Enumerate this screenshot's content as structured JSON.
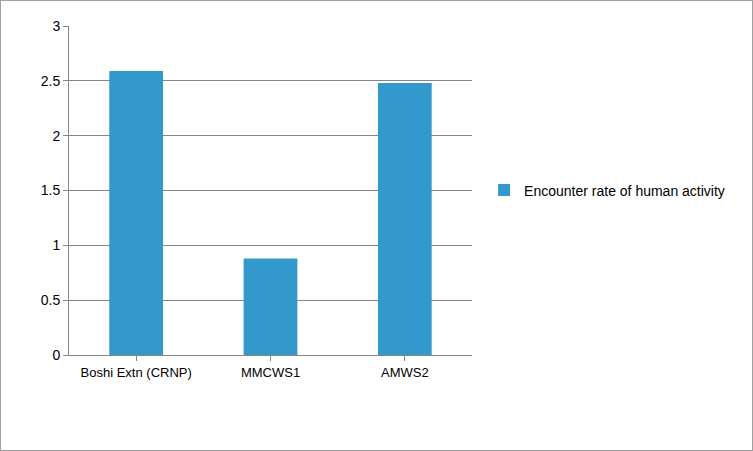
{
  "chart_data": {
    "type": "bar",
    "categories": [
      "Boshi Extn (CRNP)",
      "MMCWS1",
      "AMWS2"
    ],
    "series": [
      {
        "name": "Encounter rate of human activity",
        "color": "#3399cc",
        "values": [
          2.59,
          0.88,
          2.48
        ]
      }
    ],
    "ylim": [
      0,
      3
    ],
    "yticks": [
      0,
      0.5,
      1,
      1.5,
      2,
      2.5,
      3
    ],
    "grid": true,
    "legend": "right"
  }
}
